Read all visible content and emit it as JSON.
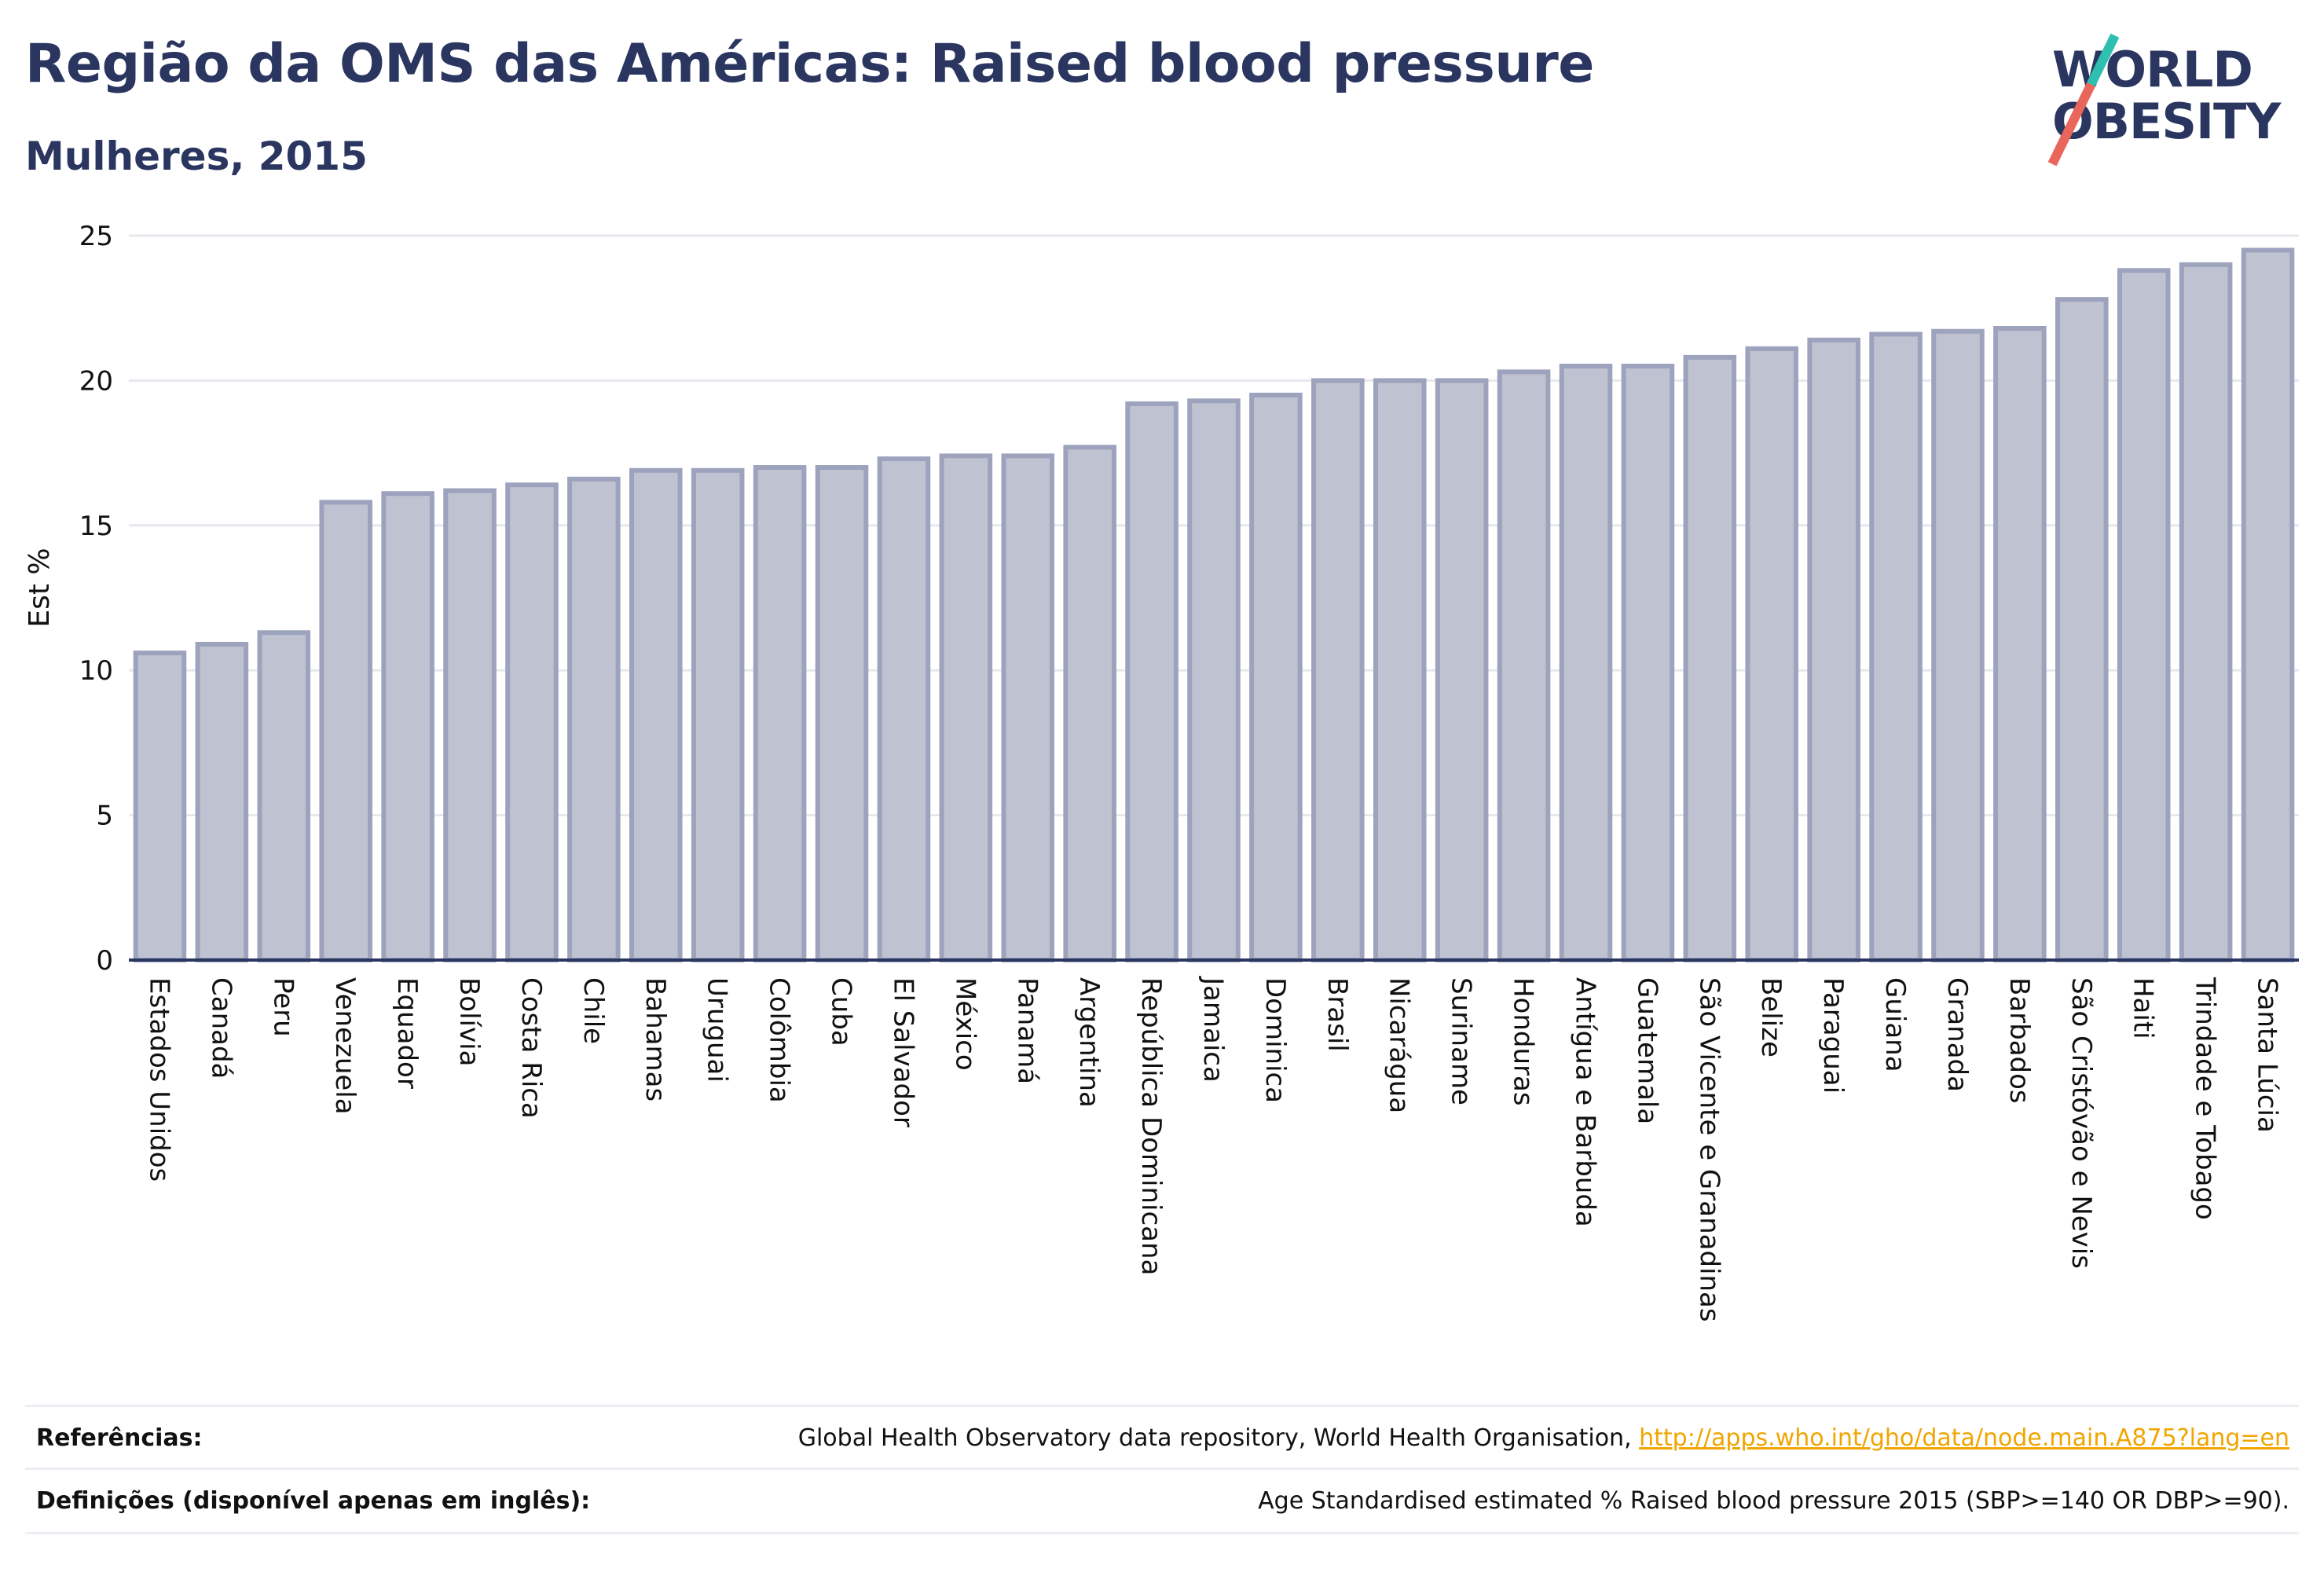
{
  "header": {
    "title": "Região da OMS das Américas: Raised blood pressure",
    "subtitle": "Mulheres, 2015"
  },
  "logo": {
    "line1": "WORLD",
    "line2": "OBESITY"
  },
  "chart_data": {
    "type": "bar",
    "title": "Região da OMS das Américas: Raised blood pressure",
    "subtitle": "Mulheres, 2015",
    "ylabel": "Est %",
    "xlabel": "",
    "ylim": [
      0,
      25
    ],
    "yticks": [
      "0",
      "5",
      "10",
      "15",
      "20",
      "25"
    ],
    "grid": true,
    "bar_fill": "#bfc3d1",
    "bar_stroke": "#9da2bd",
    "categories": [
      "Estados Unidos",
      "Canadá",
      "Peru",
      "Venezuela",
      "Equador",
      "Bolívia",
      "Costa Rica",
      "Chile",
      "Bahamas",
      "Uruguai",
      "Colômbia",
      "Cuba",
      "El Salvador",
      "México",
      "Panamá",
      "Argentina",
      "República Dominicana",
      "Jamaica",
      "Dominica",
      "Brasil",
      "Nicarágua",
      "Suriname",
      "Honduras",
      "Antígua e Barbuda",
      "Guatemala",
      "São Vicente e Granadinas",
      "Belize",
      "Paraguai",
      "Guiana",
      "Granada",
      "Barbados",
      "São Cristóvão e Nevis",
      "Haiti",
      "Trindade e Tobago",
      "Santa Lúcia"
    ],
    "values": [
      10.6,
      10.9,
      11.3,
      15.8,
      16.1,
      16.2,
      16.4,
      16.6,
      16.9,
      16.9,
      17.0,
      17.0,
      17.3,
      17.4,
      17.4,
      17.7,
      19.2,
      19.3,
      19.5,
      20.0,
      20.0,
      20.0,
      20.3,
      20.5,
      20.5,
      20.8,
      21.1,
      21.4,
      21.6,
      21.7,
      21.8,
      22.8,
      23.8,
      24.0,
      24.5
    ]
  },
  "footer": {
    "references_label": "Referências:",
    "references_text": "Global Health Observatory data repository, World Health Organisation, ",
    "references_link": "http://apps.who.int/gho/data/node.main.A875?lang=en",
    "definitions_label": "Definições (disponível apenas em inglês):",
    "definitions_text": "Age Standardised estimated % Raised blood pressure 2015 (SBP>=140 OR DBP>=90)."
  }
}
